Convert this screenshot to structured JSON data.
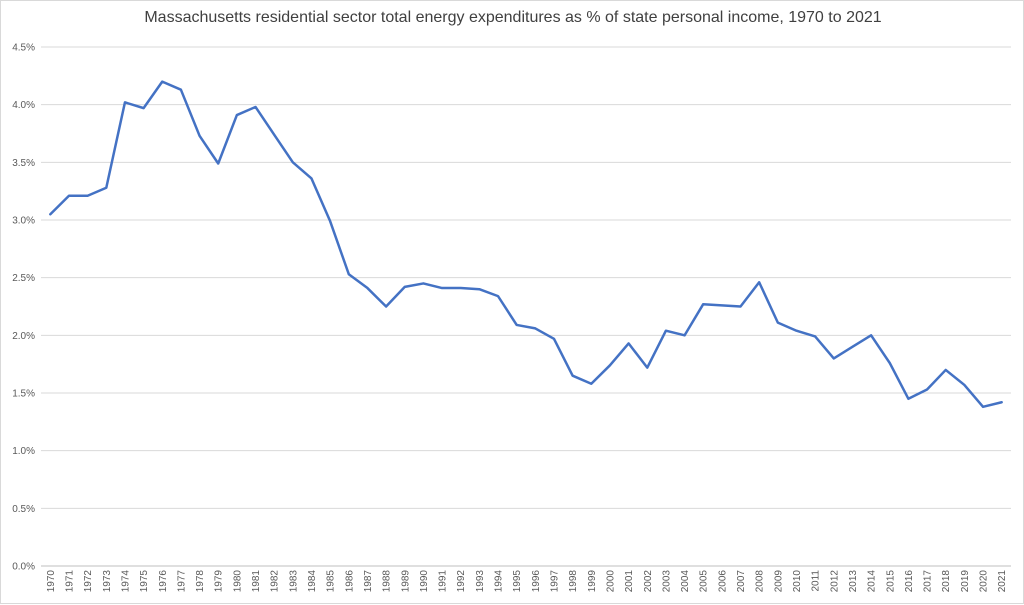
{
  "chart_data": {
    "type": "line",
    "title": "Massachusetts residential sector total energy expenditures as % of state personal income, 1970 to 2021",
    "xlabel": "",
    "ylabel": "",
    "ylim": [
      0,
      4.5
    ],
    "yticks": [
      "0.0%",
      "0.5%",
      "1.0%",
      "1.5%",
      "2.0%",
      "2.5%",
      "3.0%",
      "3.5%",
      "4.0%",
      "4.5%"
    ],
    "grid": true,
    "legend": "none",
    "line_color": "#4472c4",
    "x": [
      "1970",
      "1971",
      "1972",
      "1973",
      "1974",
      "1975",
      "1976",
      "1977",
      "1978",
      "1979",
      "1980",
      "1981",
      "1982",
      "1983",
      "1984",
      "1985",
      "1986",
      "1987",
      "1988",
      "1989",
      "1990",
      "1991",
      "1992",
      "1993",
      "1994",
      "1995",
      "1996",
      "1997",
      "1998",
      "1999",
      "2000",
      "2001",
      "2002",
      "2003",
      "2004",
      "2005",
      "2006",
      "2007",
      "2008",
      "2009",
      "2010",
      "2011",
      "2012",
      "2013",
      "2014",
      "2015",
      "2016",
      "2017",
      "2018",
      "2019",
      "2020",
      "2021"
    ],
    "series": [
      {
        "values": [
          3.05,
          3.21,
          3.21,
          3.28,
          4.02,
          3.97,
          4.2,
          4.13,
          3.73,
          3.49,
          3.91,
          3.98,
          3.74,
          3.5,
          3.36,
          2.99,
          2.53,
          2.41,
          2.25,
          2.42,
          2.45,
          2.41,
          2.41,
          2.4,
          2.34,
          2.09,
          2.06,
          1.97,
          1.65,
          1.58,
          1.74,
          1.93,
          1.72,
          2.04,
          2.0,
          2.27,
          2.26,
          2.25,
          2.46,
          2.11,
          2.04,
          1.99,
          1.8,
          1.9,
          2.0,
          1.76,
          1.45,
          1.53,
          1.7,
          1.57,
          1.38,
          1.42
        ]
      }
    ]
  }
}
